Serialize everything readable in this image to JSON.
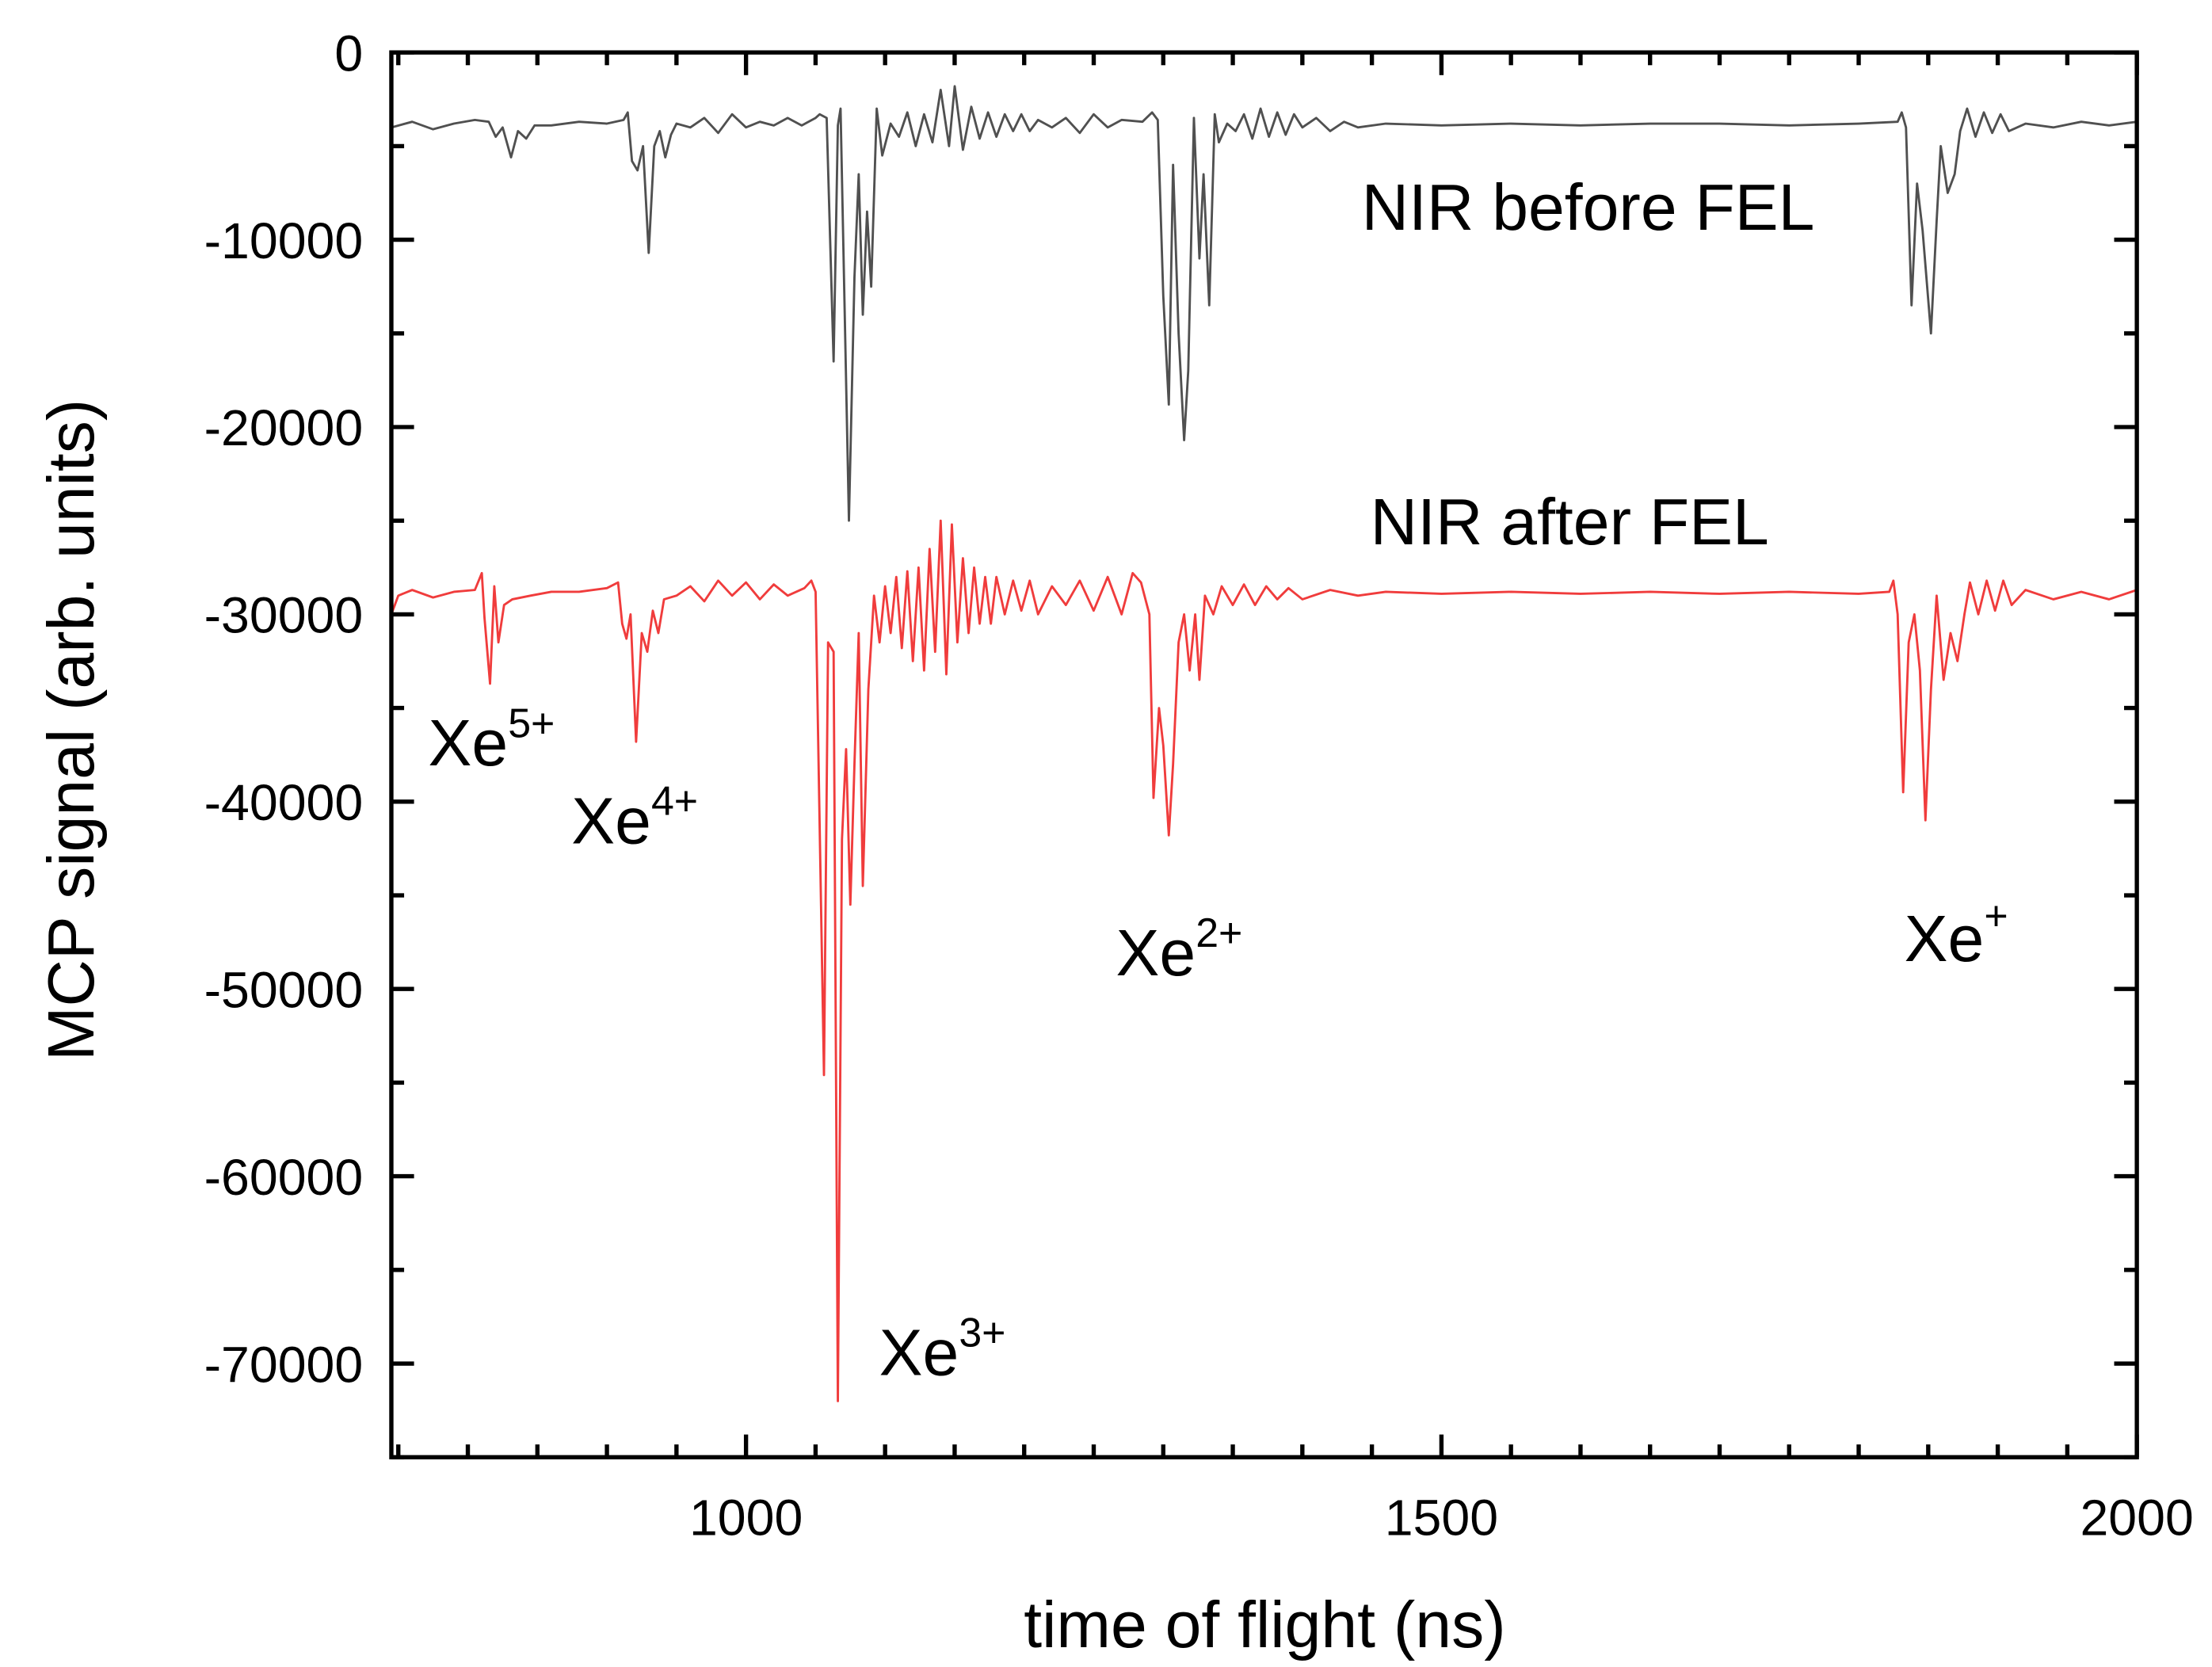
{
  "chart_data": {
    "type": "line",
    "title": "",
    "xlabel": "time of flight (ns)",
    "ylabel": "MCP signal (arb. units)",
    "xlim": [
      745,
      2000
    ],
    "ylim": [
      -75000,
      0
    ],
    "xticks": [
      1000,
      1500,
      2000
    ],
    "xtick_labels": [
      "1000",
      "1500",
      "2000"
    ],
    "x_minor_step": 50,
    "yticks": [
      0,
      -10000,
      -20000,
      -30000,
      -40000,
      -50000,
      -60000,
      -70000
    ],
    "ytick_labels": [
      "0",
      "-10000",
      "-20000",
      "-30000",
      "-40000",
      "-50000",
      "-60000",
      "-70000"
    ],
    "y_minor_step": 5000,
    "grid": false,
    "legend": "none",
    "colors": {
      "before": "#505050",
      "after": "#f03c3c",
      "axis": "#000000"
    },
    "series": [
      {
        "name": "NIR before FEL",
        "color": "#505050",
        "points": [
          [
            745,
            -4000
          ],
          [
            760,
            -3700
          ],
          [
            775,
            -4100
          ],
          [
            790,
            -3800
          ],
          [
            805,
            -3600
          ],
          [
            815,
            -3700
          ],
          [
            820,
            -4500
          ],
          [
            825,
            -4000
          ],
          [
            831,
            -5600
          ],
          [
            836,
            -4200
          ],
          [
            842,
            -4600
          ],
          [
            848,
            -3900
          ],
          [
            860,
            -3900
          ],
          [
            880,
            -3700
          ],
          [
            900,
            -3800
          ],
          [
            912,
            -3600
          ],
          [
            915,
            -3200
          ],
          [
            918,
            -5800
          ],
          [
            922,
            -6300
          ],
          [
            926,
            -5000
          ],
          [
            930,
            -10700
          ],
          [
            934,
            -5000
          ],
          [
            938,
            -4200
          ],
          [
            942,
            -5600
          ],
          [
            946,
            -4400
          ],
          [
            950,
            -3800
          ],
          [
            960,
            -4000
          ],
          [
            970,
            -3500
          ],
          [
            980,
            -4300
          ],
          [
            990,
            -3300
          ],
          [
            1000,
            -4000
          ],
          [
            1010,
            -3700
          ],
          [
            1020,
            -3900
          ],
          [
            1030,
            -3500
          ],
          [
            1040,
            -3900
          ],
          [
            1050,
            -3500
          ],
          [
            1053,
            -3300
          ],
          [
            1058,
            -3500
          ],
          [
            1063,
            -16500
          ],
          [
            1066,
            -3900
          ],
          [
            1068,
            -3000
          ],
          [
            1074,
            -25000
          ],
          [
            1078,
            -12000
          ],
          [
            1081,
            -6500
          ],
          [
            1084,
            -14000
          ],
          [
            1087,
            -8500
          ],
          [
            1090,
            -12500
          ],
          [
            1094,
            -3000
          ],
          [
            1098,
            -5500
          ],
          [
            1104,
            -3800
          ],
          [
            1110,
            -4500
          ],
          [
            1116,
            -3200
          ],
          [
            1122,
            -5000
          ],
          [
            1128,
            -3300
          ],
          [
            1134,
            -4800
          ],
          [
            1140,
            -2000
          ],
          [
            1146,
            -5000
          ],
          [
            1150,
            -1800
          ],
          [
            1156,
            -5200
          ],
          [
            1162,
            -2900
          ],
          [
            1168,
            -4600
          ],
          [
            1174,
            -3200
          ],
          [
            1180,
            -4500
          ],
          [
            1186,
            -3300
          ],
          [
            1192,
            -4200
          ],
          [
            1198,
            -3300
          ],
          [
            1204,
            -4200
          ],
          [
            1210,
            -3600
          ],
          [
            1220,
            -4000
          ],
          [
            1230,
            -3500
          ],
          [
            1240,
            -4300
          ],
          [
            1250,
            -3300
          ],
          [
            1260,
            -4000
          ],
          [
            1270,
            -3600
          ],
          [
            1285,
            -3700
          ],
          [
            1292,
            -3200
          ],
          [
            1296,
            -3600
          ],
          [
            1300,
            -13000
          ],
          [
            1304,
            -18800
          ],
          [
            1307,
            -6000
          ],
          [
            1311,
            -15000
          ],
          [
            1315,
            -20700
          ],
          [
            1318,
            -17000
          ],
          [
            1322,
            -3500
          ],
          [
            1326,
            -11000
          ],
          [
            1329,
            -6500
          ],
          [
            1333,
            -13500
          ],
          [
            1337,
            -3300
          ],
          [
            1340,
            -4800
          ],
          [
            1346,
            -3800
          ],
          [
            1352,
            -4200
          ],
          [
            1358,
            -3300
          ],
          [
            1364,
            -4600
          ],
          [
            1370,
            -3000
          ],
          [
            1376,
            -4500
          ],
          [
            1382,
            -3200
          ],
          [
            1388,
            -4400
          ],
          [
            1394,
            -3300
          ],
          [
            1400,
            -4000
          ],
          [
            1410,
            -3500
          ],
          [
            1420,
            -4200
          ],
          [
            1430,
            -3700
          ],
          [
            1440,
            -4000
          ],
          [
            1460,
            -3800
          ],
          [
            1500,
            -3900
          ],
          [
            1550,
            -3800
          ],
          [
            1600,
            -3900
          ],
          [
            1650,
            -3800
          ],
          [
            1700,
            -3800
          ],
          [
            1750,
            -3900
          ],
          [
            1800,
            -3800
          ],
          [
            1828,
            -3700
          ],
          [
            1831,
            -3200
          ],
          [
            1834,
            -4000
          ],
          [
            1838,
            -13500
          ],
          [
            1842,
            -7000
          ],
          [
            1846,
            -9500
          ],
          [
            1852,
            -15000
          ],
          [
            1856,
            -9000
          ],
          [
            1859,
            -5000
          ],
          [
            1864,
            -7500
          ],
          [
            1869,
            -6500
          ],
          [
            1873,
            -4200
          ],
          [
            1878,
            -3000
          ],
          [
            1884,
            -4500
          ],
          [
            1890,
            -3200
          ],
          [
            1896,
            -4300
          ],
          [
            1902,
            -3300
          ],
          [
            1908,
            -4200
          ],
          [
            1920,
            -3800
          ],
          [
            1940,
            -4000
          ],
          [
            1960,
            -3700
          ],
          [
            1980,
            -3900
          ],
          [
            2000,
            -3700
          ]
        ]
      },
      {
        "name": "NIR after FEL",
        "color": "#f03c3c",
        "points": [
          [
            745,
            -30000
          ],
          [
            750,
            -29000
          ],
          [
            760,
            -28700
          ],
          [
            775,
            -29100
          ],
          [
            790,
            -28800
          ],
          [
            805,
            -28700
          ],
          [
            810,
            -27800
          ],
          [
            812,
            -30200
          ],
          [
            816,
            -33700
          ],
          [
            819,
            -28500
          ],
          [
            822,
            -31500
          ],
          [
            826,
            -29500
          ],
          [
            832,
            -29200
          ],
          [
            845,
            -29000
          ],
          [
            860,
            -28800
          ],
          [
            880,
            -28800
          ],
          [
            900,
            -28600
          ],
          [
            908,
            -28300
          ],
          [
            911,
            -30500
          ],
          [
            914,
            -31300
          ],
          [
            917,
            -30000
          ],
          [
            921,
            -36800
          ],
          [
            925,
            -31000
          ],
          [
            929,
            -32000
          ],
          [
            933,
            -29800
          ],
          [
            937,
            -31000
          ],
          [
            941,
            -29200
          ],
          [
            950,
            -29000
          ],
          [
            960,
            -28500
          ],
          [
            970,
            -29300
          ],
          [
            980,
            -28200
          ],
          [
            990,
            -29000
          ],
          [
            1000,
            -28300
          ],
          [
            1010,
            -29200
          ],
          [
            1020,
            -28400
          ],
          [
            1030,
            -29000
          ],
          [
            1042,
            -28600
          ],
          [
            1047,
            -28200
          ],
          [
            1050,
            -28800
          ],
          [
            1056,
            -54600
          ],
          [
            1059,
            -31500
          ],
          [
            1063,
            -32000
          ],
          [
            1066,
            -72000
          ],
          [
            1069,
            -42000
          ],
          [
            1072,
            -37200
          ],
          [
            1075,
            -45500
          ],
          [
            1078,
            -38000
          ],
          [
            1081,
            -31000
          ],
          [
            1084,
            -44500
          ],
          [
            1088,
            -34000
          ],
          [
            1092,
            -29000
          ],
          [
            1096,
            -31500
          ],
          [
            1100,
            -28500
          ],
          [
            1104,
            -31000
          ],
          [
            1108,
            -28000
          ],
          [
            1112,
            -31800
          ],
          [
            1116,
            -27700
          ],
          [
            1120,
            -32500
          ],
          [
            1124,
            -27500
          ],
          [
            1128,
            -33000
          ],
          [
            1132,
            -26500
          ],
          [
            1136,
            -32000
          ],
          [
            1140,
            -25000
          ],
          [
            1144,
            -33200
          ],
          [
            1148,
            -25200
          ],
          [
            1152,
            -31500
          ],
          [
            1156,
            -27000
          ],
          [
            1160,
            -31000
          ],
          [
            1164,
            -27500
          ],
          [
            1168,
            -30500
          ],
          [
            1172,
            -28000
          ],
          [
            1176,
            -30500
          ],
          [
            1180,
            -28000
          ],
          [
            1186,
            -30000
          ],
          [
            1192,
            -28200
          ],
          [
            1198,
            -29800
          ],
          [
            1204,
            -28200
          ],
          [
            1210,
            -30000
          ],
          [
            1220,
            -28500
          ],
          [
            1230,
            -29500
          ],
          [
            1240,
            -28200
          ],
          [
            1250,
            -29800
          ],
          [
            1260,
            -28000
          ],
          [
            1270,
            -30000
          ],
          [
            1278,
            -27800
          ],
          [
            1284,
            -28300
          ],
          [
            1290,
            -30000
          ],
          [
            1293,
            -39800
          ],
          [
            1297,
            -35000
          ],
          [
            1300,
            -37000
          ],
          [
            1304,
            -41800
          ],
          [
            1307,
            -38000
          ],
          [
            1311,
            -31500
          ],
          [
            1315,
            -30000
          ],
          [
            1319,
            -33000
          ],
          [
            1323,
            -30000
          ],
          [
            1326,
            -33500
          ],
          [
            1330,
            -29000
          ],
          [
            1336,
            -30000
          ],
          [
            1342,
            -28500
          ],
          [
            1350,
            -29500
          ],
          [
            1358,
            -28400
          ],
          [
            1366,
            -29500
          ],
          [
            1374,
            -28500
          ],
          [
            1382,
            -29200
          ],
          [
            1390,
            -28600
          ],
          [
            1400,
            -29200
          ],
          [
            1420,
            -28700
          ],
          [
            1440,
            -29000
          ],
          [
            1460,
            -28800
          ],
          [
            1500,
            -28900
          ],
          [
            1550,
            -28800
          ],
          [
            1600,
            -28900
          ],
          [
            1650,
            -28800
          ],
          [
            1700,
            -28900
          ],
          [
            1750,
            -28800
          ],
          [
            1800,
            -28900
          ],
          [
            1822,
            -28800
          ],
          [
            1825,
            -28200
          ],
          [
            1828,
            -30000
          ],
          [
            1832,
            -39500
          ],
          [
            1836,
            -31500
          ],
          [
            1840,
            -30000
          ],
          [
            1844,
            -33000
          ],
          [
            1848,
            -41000
          ],
          [
            1852,
            -34000
          ],
          [
            1856,
            -29000
          ],
          [
            1861,
            -33500
          ],
          [
            1866,
            -31000
          ],
          [
            1871,
            -32500
          ],
          [
            1876,
            -30000
          ],
          [
            1880,
            -28300
          ],
          [
            1886,
            -30000
          ],
          [
            1892,
            -28200
          ],
          [
            1898,
            -29800
          ],
          [
            1904,
            -28200
          ],
          [
            1910,
            -29500
          ],
          [
            1920,
            -28700
          ],
          [
            1940,
            -29200
          ],
          [
            1960,
            -28800
          ],
          [
            1980,
            -29200
          ],
          [
            2000,
            -28700
          ]
        ]
      }
    ],
    "annotations": {
      "before_label": "NIR before FEL",
      "after_label": "NIR after FEL",
      "xe5": {
        "base": "Xe",
        "sup": "5+"
      },
      "xe4": {
        "base": "Xe",
        "sup": "4+"
      },
      "xe3": {
        "base": "Xe",
        "sup": "3+"
      },
      "xe2": {
        "base": "Xe",
        "sup": "2+"
      },
      "xe1": {
        "base": "Xe",
        "sup": "+"
      }
    }
  }
}
